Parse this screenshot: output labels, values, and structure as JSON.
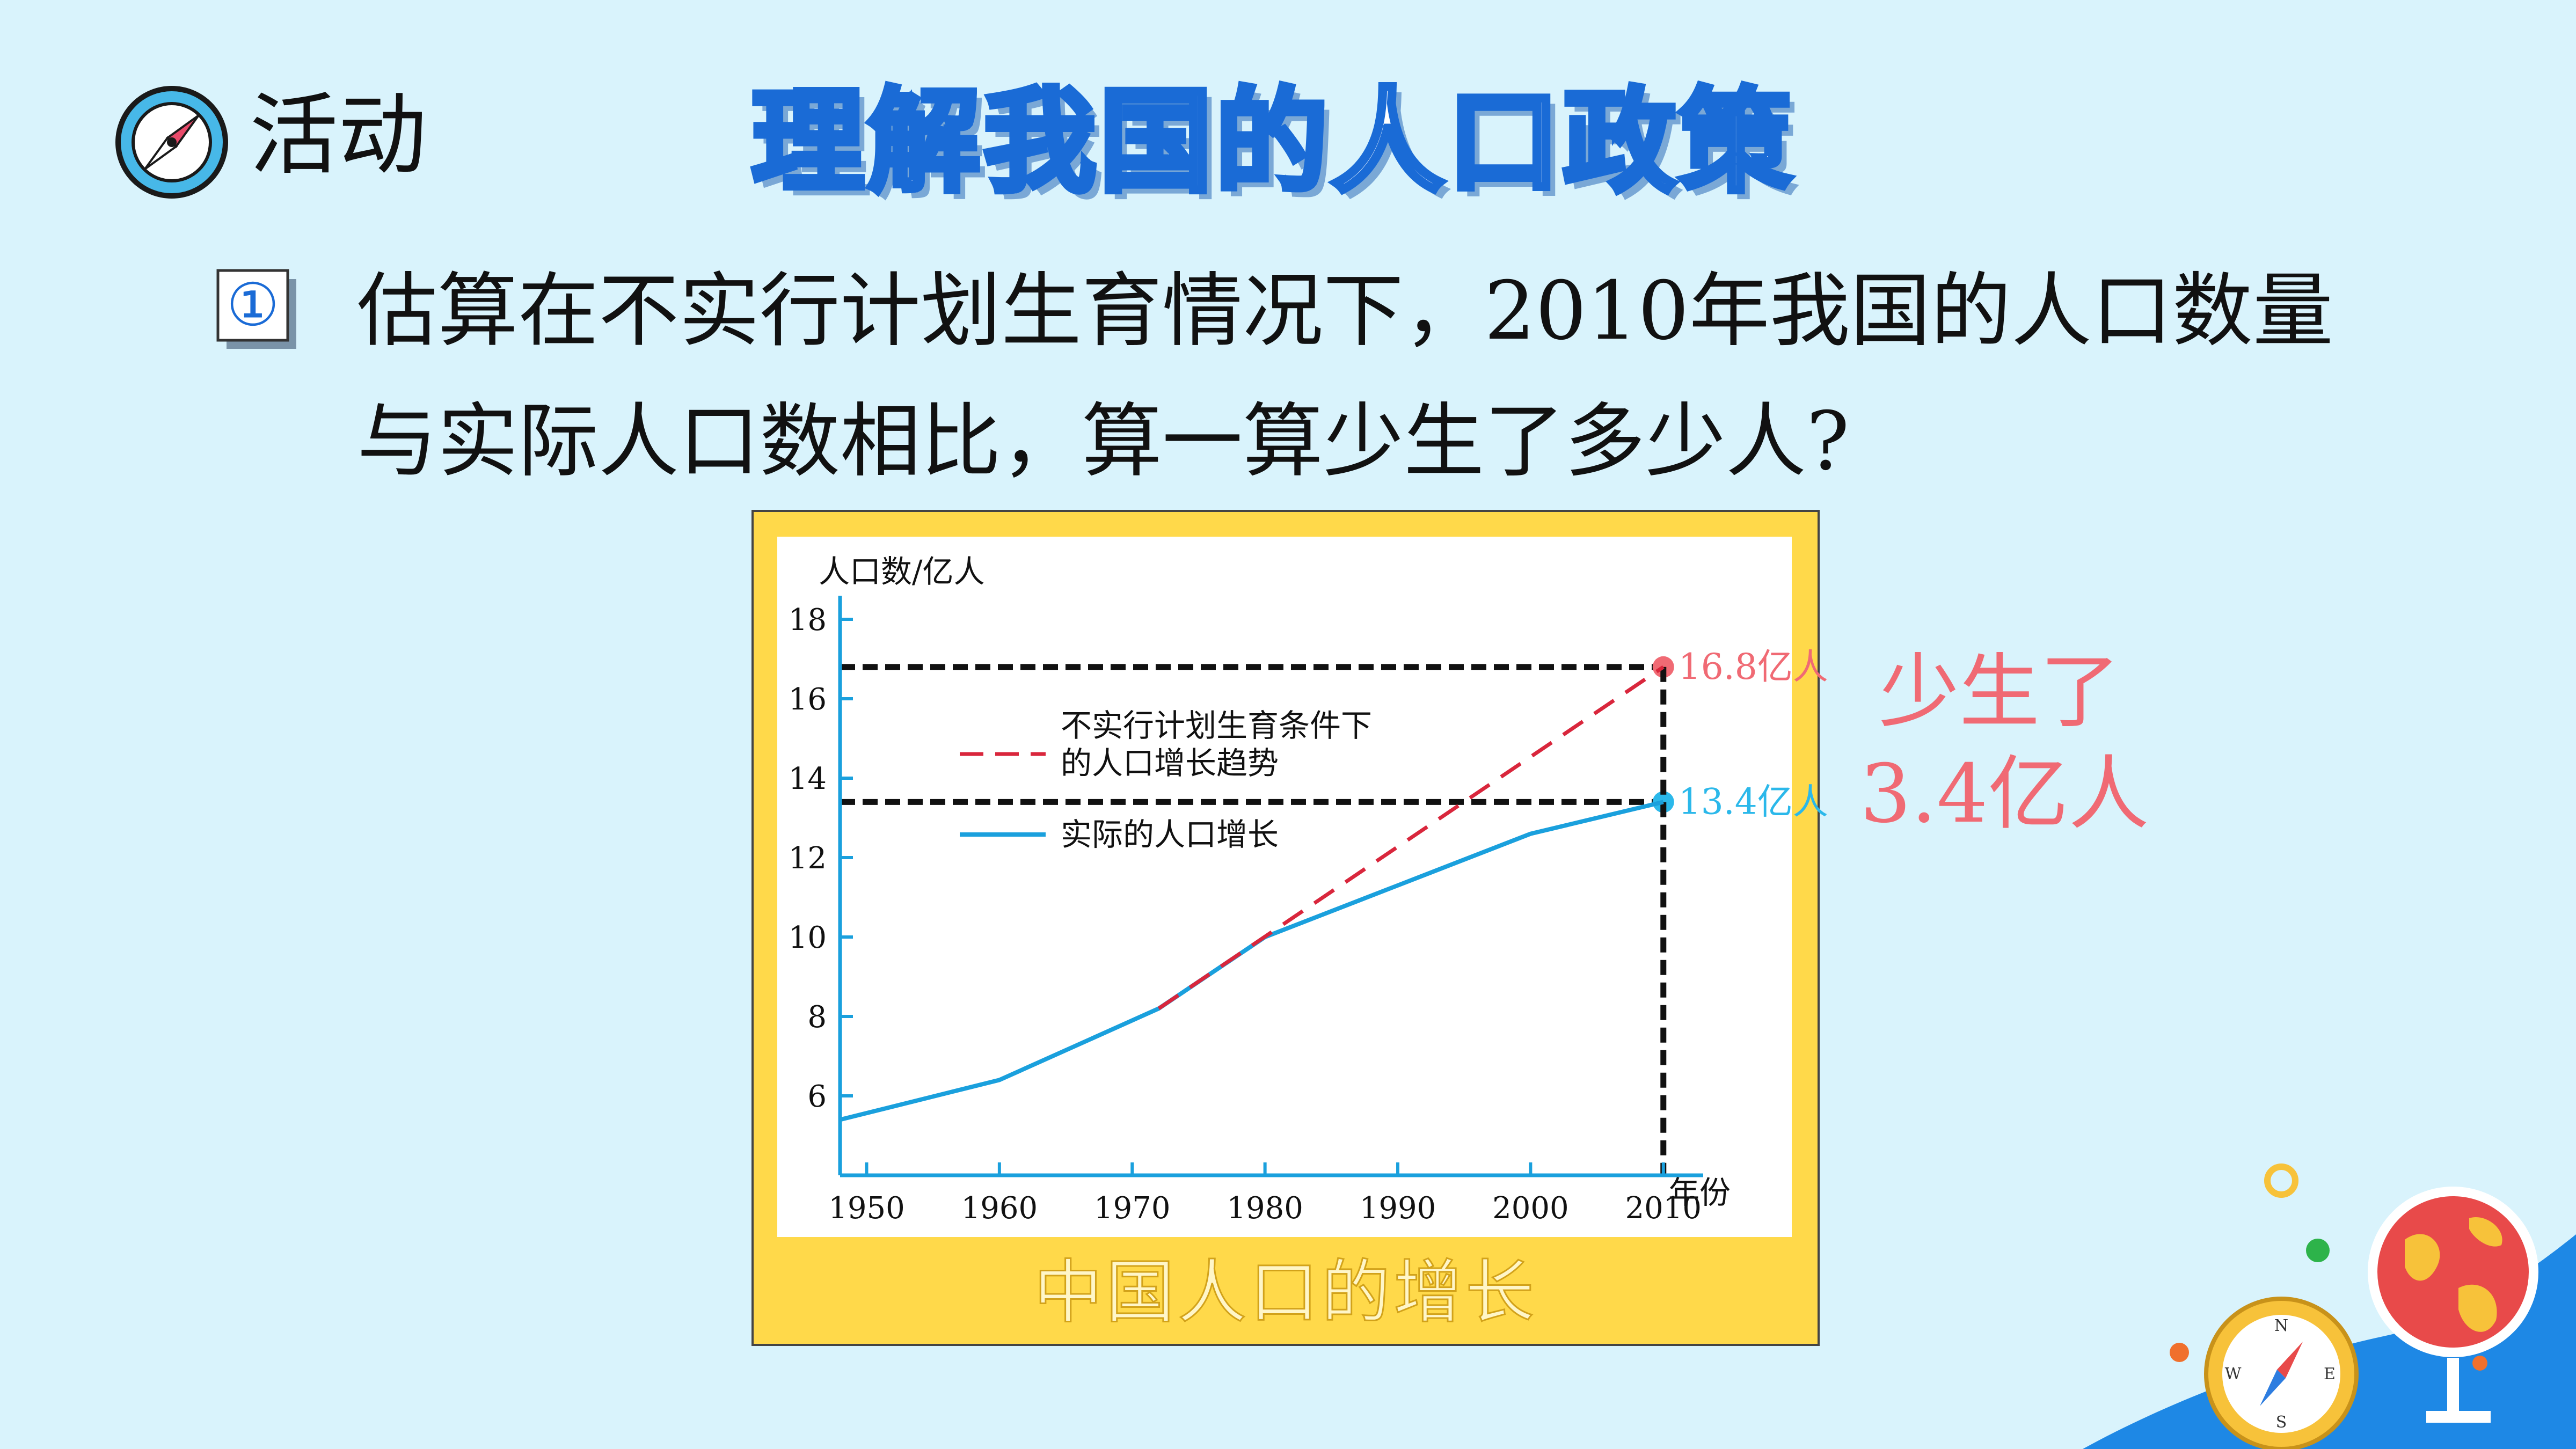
{
  "header": {
    "activity_label": "活动",
    "title": "理解我国的人口政策"
  },
  "question": {
    "number": "①",
    "line1": "估算在不实行计划生育情况下，2010年我国的人口数量",
    "line2": "与实际人口数相比，算一算少生了多少人?"
  },
  "answer": {
    "line1": "少生了",
    "line2": "3.4亿人"
  },
  "colors": {
    "background": "#d9f3fc",
    "frame": "#ffd94a",
    "actual_series": "#1aa0dd",
    "no_policy_series": "#d9263c",
    "answer_text": "#f06a74"
  },
  "chart_data": {
    "type": "line",
    "caption": "中国人口的增长",
    "ylabel": "人口数/亿人",
    "xlabel": "年份",
    "x_ticks": [
      "1950",
      "1960",
      "1970",
      "1980",
      "1990",
      "2000",
      "2010"
    ],
    "y_ticks": [
      "6",
      "8",
      "10",
      "12",
      "14",
      "16",
      "18"
    ],
    "xlim": [
      1948,
      2013
    ],
    "ylim": [
      4,
      19
    ],
    "legend_placement": "upper-left",
    "series": [
      {
        "name": "实际的人口增长",
        "style": "solid",
        "x": [
          1948,
          1960,
          1972,
          1980,
          1990,
          2000,
          2010
        ],
        "y": [
          5.4,
          6.4,
          8.2,
          10.0,
          11.3,
          12.6,
          13.4
        ]
      },
      {
        "name": "不实行计划生育条件下的人口增长趋势",
        "legend_lines": [
          "不实行计划生育条件下",
          "的人口增长趋势"
        ],
        "style": "dashed",
        "x": [
          1972,
          2010
        ],
        "y": [
          8.2,
          16.8
        ]
      }
    ],
    "reference_lines": [
      {
        "value": 16.8,
        "label": "16.8亿人",
        "color": "#f06a74"
      },
      {
        "value": 13.4,
        "label": "13.4亿人",
        "color": "#2bb8ea"
      }
    ],
    "reference_x": 2010
  }
}
